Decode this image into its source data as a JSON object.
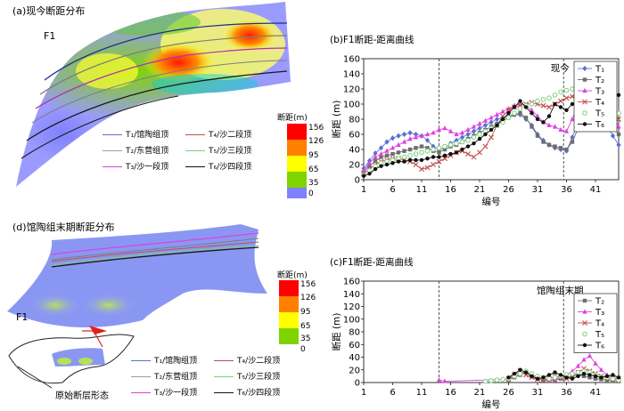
{
  "panel_a": {
    "title": "(a)现今断距分布",
    "fault_label": "F1",
    "legend": [
      {
        "label": "T₁/馆陶组顶",
        "color": "#5b6fd6"
      },
      {
        "label": "T₄/沙二段顶",
        "color": "#c0504d"
      },
      {
        "label": "T₂/东营组顶",
        "color": "#9b9b9b"
      },
      {
        "label": "T₅/沙三段顶",
        "color": "#7bd07b"
      },
      {
        "label": "T₃/沙一段顶",
        "color": "#e040e0"
      },
      {
        "label": "T₆/沙四段顶",
        "color": "#111111"
      }
    ],
    "colorbar": {
      "title": "断距(m)",
      "levels": [
        "156",
        "126",
        "95",
        "65",
        "35",
        "0"
      ],
      "colors": [
        "#ff0000",
        "#ff7f00",
        "#ffff00",
        "#7fd400",
        "#8080ff",
        "#00e0e0"
      ]
    }
  },
  "panel_d": {
    "title": "(d)馆陶组末期断距分布",
    "fault_label": "F1",
    "inset_label": "原始断层形态"
  },
  "chart_data": [
    {
      "type": "line",
      "title": "(b)F1断距-距离曲线",
      "annotation": "现今",
      "xlabel": "编号",
      "ylabel": "断距 (m)",
      "xlim": [
        1,
        45
      ],
      "ylim": [
        0,
        160
      ],
      "xticks": [
        1,
        6,
        11,
        16,
        21,
        26,
        31,
        36,
        41
      ],
      "yticks": [
        0,
        20,
        40,
        60,
        80,
        100,
        120,
        140,
        160
      ],
      "vlines": [
        14,
        35.5
      ],
      "series": [
        {
          "name": "T₁",
          "color": "#5b6fd6",
          "marker": "diamond",
          "x": [
            1,
            2,
            3,
            4,
            5,
            6,
            7,
            8,
            9,
            10,
            11,
            12,
            13,
            14,
            15,
            16,
            17,
            18,
            19,
            20,
            21,
            22,
            23,
            24,
            25,
            26,
            27,
            28,
            29,
            30,
            31,
            32,
            33,
            34,
            35,
            36,
            37,
            38,
            39,
            40,
            41,
            42,
            43,
            44,
            45
          ],
          "y": [
            15,
            25,
            35,
            42,
            50,
            55,
            58,
            60,
            62,
            60,
            58,
            52,
            44,
            40,
            42,
            48,
            52,
            56,
            60,
            64,
            68,
            72,
            76,
            80,
            82,
            84,
            86,
            86,
            80,
            72,
            60,
            52,
            46,
            42,
            40,
            38,
            56,
            76,
            92,
            102,
            108,
            92,
            72,
            58,
            46
          ]
        },
        {
          "name": "T₂",
          "color": "#6e6e6e",
          "marker": "square",
          "x": [
            1,
            2,
            3,
            4,
            5,
            6,
            7,
            8,
            9,
            10,
            11,
            12,
            13,
            14,
            15,
            16,
            17,
            18,
            19,
            20,
            21,
            22,
            23,
            24,
            25,
            26,
            27,
            28,
            29,
            30,
            31,
            32,
            33,
            34,
            35,
            36,
            37,
            38,
            39,
            40,
            41,
            42,
            43,
            44,
            45
          ],
          "y": [
            10,
            18,
            25,
            30,
            32,
            34,
            36,
            38,
            40,
            42,
            44,
            42,
            38,
            36,
            40,
            44,
            46,
            50,
            54,
            58,
            62,
            66,
            70,
            74,
            78,
            82,
            86,
            88,
            82,
            70,
            58,
            50,
            46,
            44,
            42,
            40,
            50,
            68,
            84,
            96,
            104,
            100,
            86,
            72,
            60
          ]
        },
        {
          "name": "T₃",
          "color": "#e040e0",
          "marker": "triangle",
          "x": [
            1,
            2,
            3,
            4,
            5,
            6,
            7,
            8,
            9,
            10,
            11,
            12,
            13,
            14,
            15,
            16,
            17,
            18,
            19,
            20,
            21,
            22,
            23,
            24,
            25,
            26,
            27,
            28,
            29,
            30,
            31,
            32,
            33,
            34,
            35,
            36,
            37,
            38,
            39,
            40,
            41,
            42,
            43,
            44,
            45
          ],
          "y": [
            12,
            22,
            30,
            34,
            38,
            42,
            46,
            50,
            54,
            56,
            58,
            60,
            62,
            66,
            68,
            64,
            60,
            62,
            66,
            70,
            74,
            78,
            82,
            86,
            90,
            94,
            98,
            100,
            98,
            92,
            84,
            76,
            72,
            70,
            66,
            64,
            80,
            100,
            124,
            140,
            150,
            130,
            108,
            88,
            70
          ]
        },
        {
          "name": "T₄",
          "color": "#c0504d",
          "marker": "x",
          "x": [
            1,
            2,
            3,
            4,
            5,
            6,
            7,
            8,
            9,
            10,
            11,
            12,
            13,
            14,
            15,
            16,
            17,
            18,
            19,
            20,
            21,
            22,
            23,
            24,
            25,
            26,
            27,
            28,
            29,
            30,
            31,
            32,
            33,
            34,
            35,
            36,
            37,
            38,
            39,
            40,
            41,
            42,
            43,
            44,
            45
          ],
          "y": [
            8,
            14,
            20,
            24,
            26,
            28,
            28,
            26,
            24,
            20,
            14,
            16,
            20,
            24,
            28,
            32,
            36,
            38,
            34,
            30,
            36,
            44,
            56,
            72,
            84,
            92,
            96,
            98,
            100,
            102,
            100,
            98,
            96,
            100,
            104,
            108,
            110,
            112,
            114,
            116,
            118,
            112,
            100,
            90,
            80
          ]
        },
        {
          "name": "T₅",
          "color": "#7bd07b",
          "marker": "circle-open",
          "x": [
            1,
            2,
            3,
            4,
            5,
            6,
            7,
            8,
            9,
            10,
            11,
            12,
            13,
            14,
            15,
            16,
            17,
            18,
            19,
            20,
            21,
            22,
            23,
            24,
            25,
            26,
            27,
            28,
            29,
            30,
            31,
            32,
            33,
            34,
            35,
            36,
            37,
            38,
            39,
            40,
            41,
            42,
            43,
            44,
            45
          ],
          "y": [
            6,
            12,
            18,
            22,
            24,
            26,
            28,
            30,
            32,
            34,
            36,
            38,
            40,
            42,
            44,
            46,
            48,
            50,
            52,
            56,
            60,
            64,
            68,
            72,
            76,
            82,
            88,
            94,
            98,
            100,
            104,
            106,
            108,
            112,
            116,
            118,
            120,
            122,
            124,
            126,
            128,
            120,
            110,
            98,
            88
          ]
        },
        {
          "name": "T₆",
          "color": "#111111",
          "marker": "circle",
          "x": [
            1,
            2,
            3,
            4,
            5,
            6,
            7,
            8,
            9,
            10,
            11,
            12,
            13,
            14,
            15,
            16,
            17,
            18,
            19,
            20,
            21,
            22,
            23,
            24,
            25,
            26,
            27,
            28,
            29,
            30,
            31,
            32,
            33,
            34,
            35,
            36,
            37,
            38,
            39,
            40,
            41,
            42,
            43,
            44,
            45
          ],
          "y": [
            5,
            8,
            14,
            18,
            20,
            22,
            24,
            24,
            26,
            26,
            26,
            28,
            30,
            30,
            32,
            34,
            36,
            40,
            44,
            48,
            54,
            60,
            66,
            72,
            80,
            88,
            96,
            104,
            96,
            88,
            80,
            76,
            84,
            100,
            96,
            92,
            100,
            104,
            108,
            112,
            118,
            120,
            116,
            114,
            112
          ]
        }
      ]
    },
    {
      "type": "line",
      "title": "(c)F1断距-距离曲线",
      "annotation": "馆陶组末期",
      "xlabel": "编号",
      "ylabel": "断距 (m)",
      "xlim": [
        1,
        45
      ],
      "ylim": [
        0,
        160
      ],
      "xticks": [
        1,
        6,
        11,
        16,
        21,
        26,
        31,
        36,
        41
      ],
      "yticks": [
        0,
        20,
        40,
        60,
        80,
        100,
        120,
        140,
        160
      ],
      "vlines": [
        14,
        35.5
      ],
      "series": [
        {
          "name": "T₂",
          "color": "#6e6e6e",
          "marker": "square",
          "x": [
            26,
            27,
            28,
            29,
            30,
            31,
            32,
            33,
            34,
            35,
            36,
            37,
            38,
            39,
            40,
            41,
            42,
            43,
            44,
            45
          ],
          "y": [
            4,
            8,
            12,
            16,
            10,
            6,
            4,
            3,
            4,
            6,
            8,
            10,
            12,
            10,
            8,
            6,
            5,
            4,
            3,
            2
          ]
        },
        {
          "name": "T₃",
          "color": "#e040e0",
          "marker": "triangle",
          "x": [
            14,
            15,
            26,
            27,
            28,
            29,
            30,
            31,
            32,
            33,
            34,
            35,
            36,
            37,
            38,
            39,
            40,
            41,
            42,
            43,
            44,
            45
          ],
          "y": [
            4,
            2,
            5,
            10,
            14,
            18,
            12,
            8,
            6,
            4,
            5,
            8,
            12,
            18,
            26,
            36,
            42,
            30,
            20,
            12,
            8,
            6
          ]
        },
        {
          "name": "T₄",
          "color": "#c0504d",
          "marker": "x",
          "x": [
            26,
            27,
            28,
            29,
            30,
            31,
            32,
            33,
            34,
            35,
            36,
            37,
            38,
            39,
            40,
            41,
            42,
            43,
            44,
            45
          ],
          "y": [
            6,
            12,
            18,
            12,
            8,
            5,
            4,
            6,
            10,
            8,
            6,
            10,
            16,
            22,
            18,
            14,
            10,
            8,
            6,
            4
          ]
        },
        {
          "name": "T₅",
          "color": "#7bd07b",
          "marker": "circle-open",
          "x": [
            22,
            23,
            24,
            25,
            26,
            27,
            28,
            29,
            30,
            31,
            32,
            33,
            34,
            35,
            36,
            37,
            38,
            39,
            40,
            41,
            42,
            43,
            44,
            45
          ],
          "y": [
            2,
            3,
            4,
            5,
            6,
            10,
            14,
            18,
            14,
            10,
            8,
            6,
            8,
            10,
            12,
            14,
            16,
            18,
            16,
            12,
            10,
            8,
            6,
            4
          ]
        },
        {
          "name": "T₆",
          "color": "#111111",
          "marker": "circle",
          "x": [
            26,
            27,
            28,
            29,
            30,
            31,
            32,
            33,
            34,
            35,
            36,
            37,
            38,
            39,
            40,
            41,
            42,
            43,
            44,
            45
          ],
          "y": [
            8,
            14,
            20,
            16,
            10,
            6,
            8,
            12,
            16,
            12,
            8,
            6,
            10,
            14,
            12,
            10,
            8,
            10,
            12,
            8
          ]
        }
      ]
    }
  ]
}
